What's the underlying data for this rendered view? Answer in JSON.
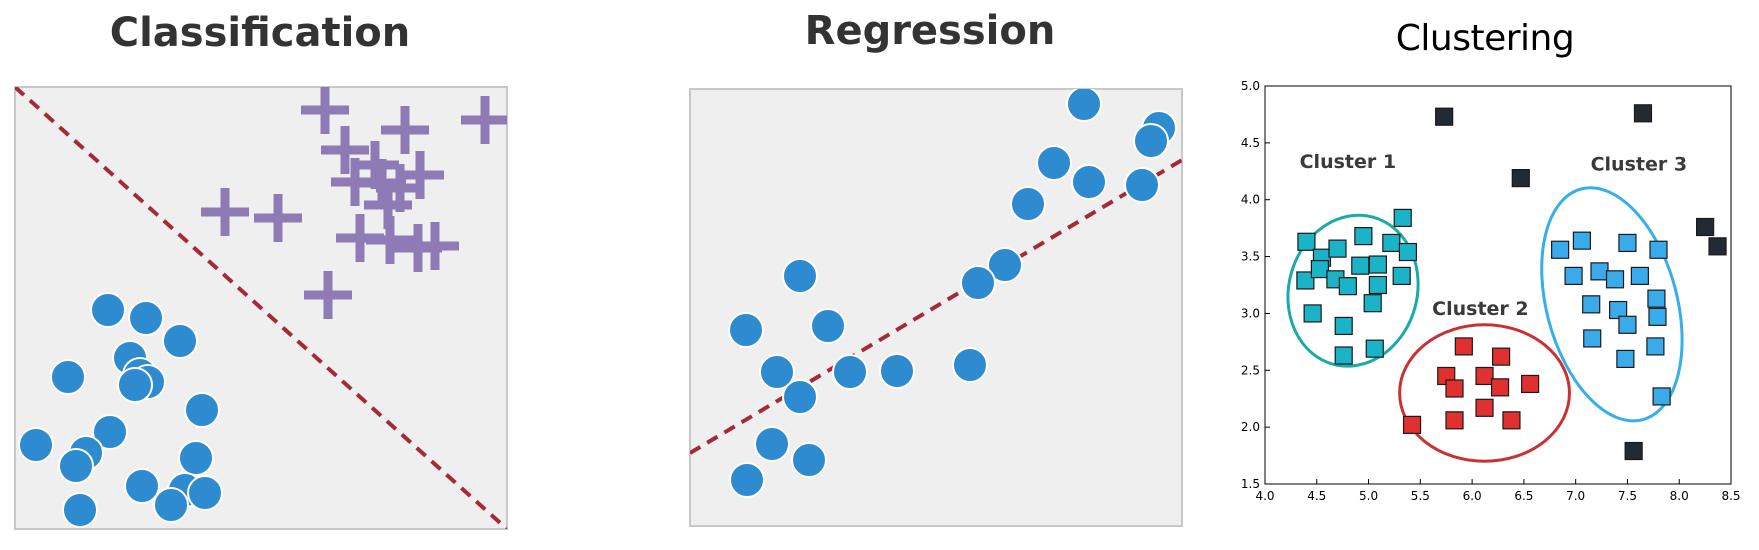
{
  "colors": {
    "panel_bg": "#f0eff0",
    "panel_border": "#c8c8c8",
    "dot": "#2f8bd0",
    "plus": "#8e7ab5",
    "dashed_line": "#a52a38",
    "cluster1_fill": "#1bb3c8",
    "cluster1_ring": "#1aaaaa",
    "cluster2_fill": "#e03030",
    "cluster2_ring": "#c83232",
    "cluster3_fill": "#3aabea",
    "cluster3_ring": "#38aee8",
    "outlier": "#222a33"
  },
  "icons": {
    "circle_marker": "circle-point-icon",
    "plus_marker": "plus-point-icon",
    "square_marker": "square-point-icon"
  },
  "panels": {
    "classification": {
      "title": "Classification"
    },
    "regression": {
      "title": "Regression"
    },
    "clustering": {
      "title": "Clustering",
      "cluster_labels": [
        "Cluster 1",
        "Cluster 2",
        "Cluster 3"
      ]
    }
  },
  "chart_data": {
    "type": "scatter",
    "xlim": [
      4.0,
      8.5
    ],
    "ylim": [
      1.5,
      5.0
    ],
    "x_ticks": [
      "4.0",
      "4.5",
      "5.0",
      "5.5",
      "6.0",
      "6.5",
      "7.0",
      "7.5",
      "8.0",
      "8.5"
    ],
    "y_ticks": [
      "1.5",
      "2.0",
      "2.5",
      "3.0",
      "3.5",
      "4.0",
      "4.5",
      "5.0"
    ],
    "series": [
      {
        "name": "Cluster 1",
        "points": [
          [
            4.4,
            3.63
          ],
          [
            4.55,
            3.49
          ],
          [
            4.7,
            3.57
          ],
          [
            4.95,
            3.68
          ],
          [
            5.22,
            3.62
          ],
          [
            5.33,
            3.84
          ],
          [
            4.39,
            3.29
          ],
          [
            4.53,
            3.39
          ],
          [
            4.68,
            3.3
          ],
          [
            4.8,
            3.24
          ],
          [
            4.92,
            3.42
          ],
          [
            5.09,
            3.43
          ],
          [
            5.38,
            3.54
          ],
          [
            5.09,
            3.25
          ],
          [
            5.04,
            3.09
          ],
          [
            5.32,
            3.33
          ],
          [
            4.46,
            3.0
          ],
          [
            4.76,
            2.89
          ],
          [
            4.76,
            2.63
          ],
          [
            5.06,
            2.69
          ]
        ]
      },
      {
        "name": "Cluster 2",
        "points": [
          [
            5.92,
            2.71
          ],
          [
            5.75,
            2.45
          ],
          [
            5.83,
            2.34
          ],
          [
            6.12,
            2.45
          ],
          [
            6.28,
            2.62
          ],
          [
            6.56,
            2.38
          ],
          [
            6.27,
            2.35
          ],
          [
            5.42,
            2.02
          ],
          [
            5.83,
            2.06
          ],
          [
            6.12,
            2.17
          ],
          [
            6.38,
            2.06
          ]
        ]
      },
      {
        "name": "Cluster 3",
        "points": [
          [
            6.85,
            3.56
          ],
          [
            7.06,
            3.64
          ],
          [
            7.5,
            3.62
          ],
          [
            7.8,
            3.56
          ],
          [
            6.98,
            3.33
          ],
          [
            7.23,
            3.37
          ],
          [
            7.38,
            3.3
          ],
          [
            7.62,
            3.33
          ],
          [
            7.78,
            3.13
          ],
          [
            7.15,
            3.08
          ],
          [
            7.41,
            3.03
          ],
          [
            7.5,
            2.9
          ],
          [
            7.79,
            2.97
          ],
          [
            7.16,
            2.78
          ],
          [
            7.77,
            2.71
          ],
          [
            7.48,
            2.6
          ],
          [
            7.83,
            2.27
          ]
        ]
      },
      {
        "name": "",
        "points": [
          [
            5.73,
            4.73
          ],
          [
            6.47,
            4.19
          ],
          [
            7.65,
            4.76
          ],
          [
            8.25,
            3.76
          ],
          [
            8.37,
            3.59
          ],
          [
            7.56,
            1.79
          ]
        ]
      }
    ]
  }
}
